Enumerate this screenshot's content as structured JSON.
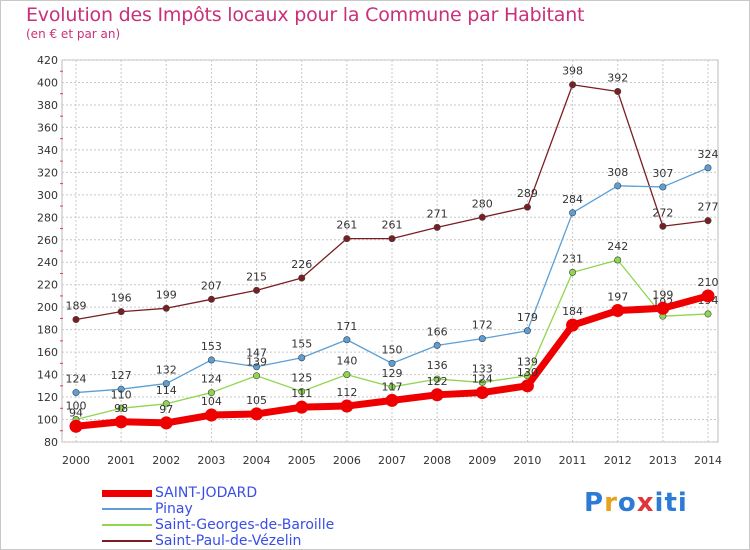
{
  "header": {
    "title": "Evolution des Impôts locaux pour la Commune par Habitant",
    "subtitle": "(en € et par an)"
  },
  "logo": {
    "text": "Proxiti",
    "colors": [
      "#2e7bd6",
      "#e8a21c",
      "#2e7bd6",
      "#e0353b",
      "#2e7bd6",
      "#2e7bd6",
      "#2e7bd6"
    ]
  },
  "chart_data": {
    "type": "line",
    "x": [
      "2000",
      "2001",
      "2002",
      "2003",
      "2004",
      "2005",
      "2006",
      "2007",
      "2008",
      "2009",
      "2010",
      "2011",
      "2012",
      "2013",
      "2014"
    ],
    "ylim": [
      80,
      420
    ],
    "yticks": [
      80,
      100,
      120,
      140,
      160,
      180,
      200,
      220,
      240,
      260,
      280,
      300,
      320,
      340,
      360,
      380,
      400,
      420
    ],
    "grid": true,
    "legend_position": "bottom-left",
    "series": [
      {
        "name": "Saint-Paul-de-Vézelin",
        "color": "#7a1e22",
        "values": [
          189,
          196,
          199,
          207,
          215,
          226,
          261,
          261,
          271,
          280,
          289,
          398,
          392,
          272,
          277
        ]
      },
      {
        "name": "Pinay",
        "color": "#5b9fd6",
        "values": [
          124,
          127,
          132,
          153,
          147,
          155,
          171,
          150,
          166,
          172,
          179,
          284,
          308,
          307,
          324
        ]
      },
      {
        "name": "Saint-Georges-de-Baroille",
        "color": "#8fd64f",
        "values": [
          100,
          110,
          114,
          124,
          139,
          125,
          140,
          129,
          136,
          133,
          139,
          231,
          242,
          192,
          194
        ]
      },
      {
        "name": "SAINT-JODARD",
        "color": "#ee0000",
        "values": [
          94,
          98,
          97,
          104,
          105,
          111,
          112,
          117,
          122,
          124,
          130,
          184,
          197,
          199,
          210
        ]
      }
    ],
    "legend_order": [
      "SAINT-JODARD",
      "Pinay",
      "Saint-Georges-de-Baroille",
      "Saint-Paul-de-Vézelin"
    ]
  }
}
